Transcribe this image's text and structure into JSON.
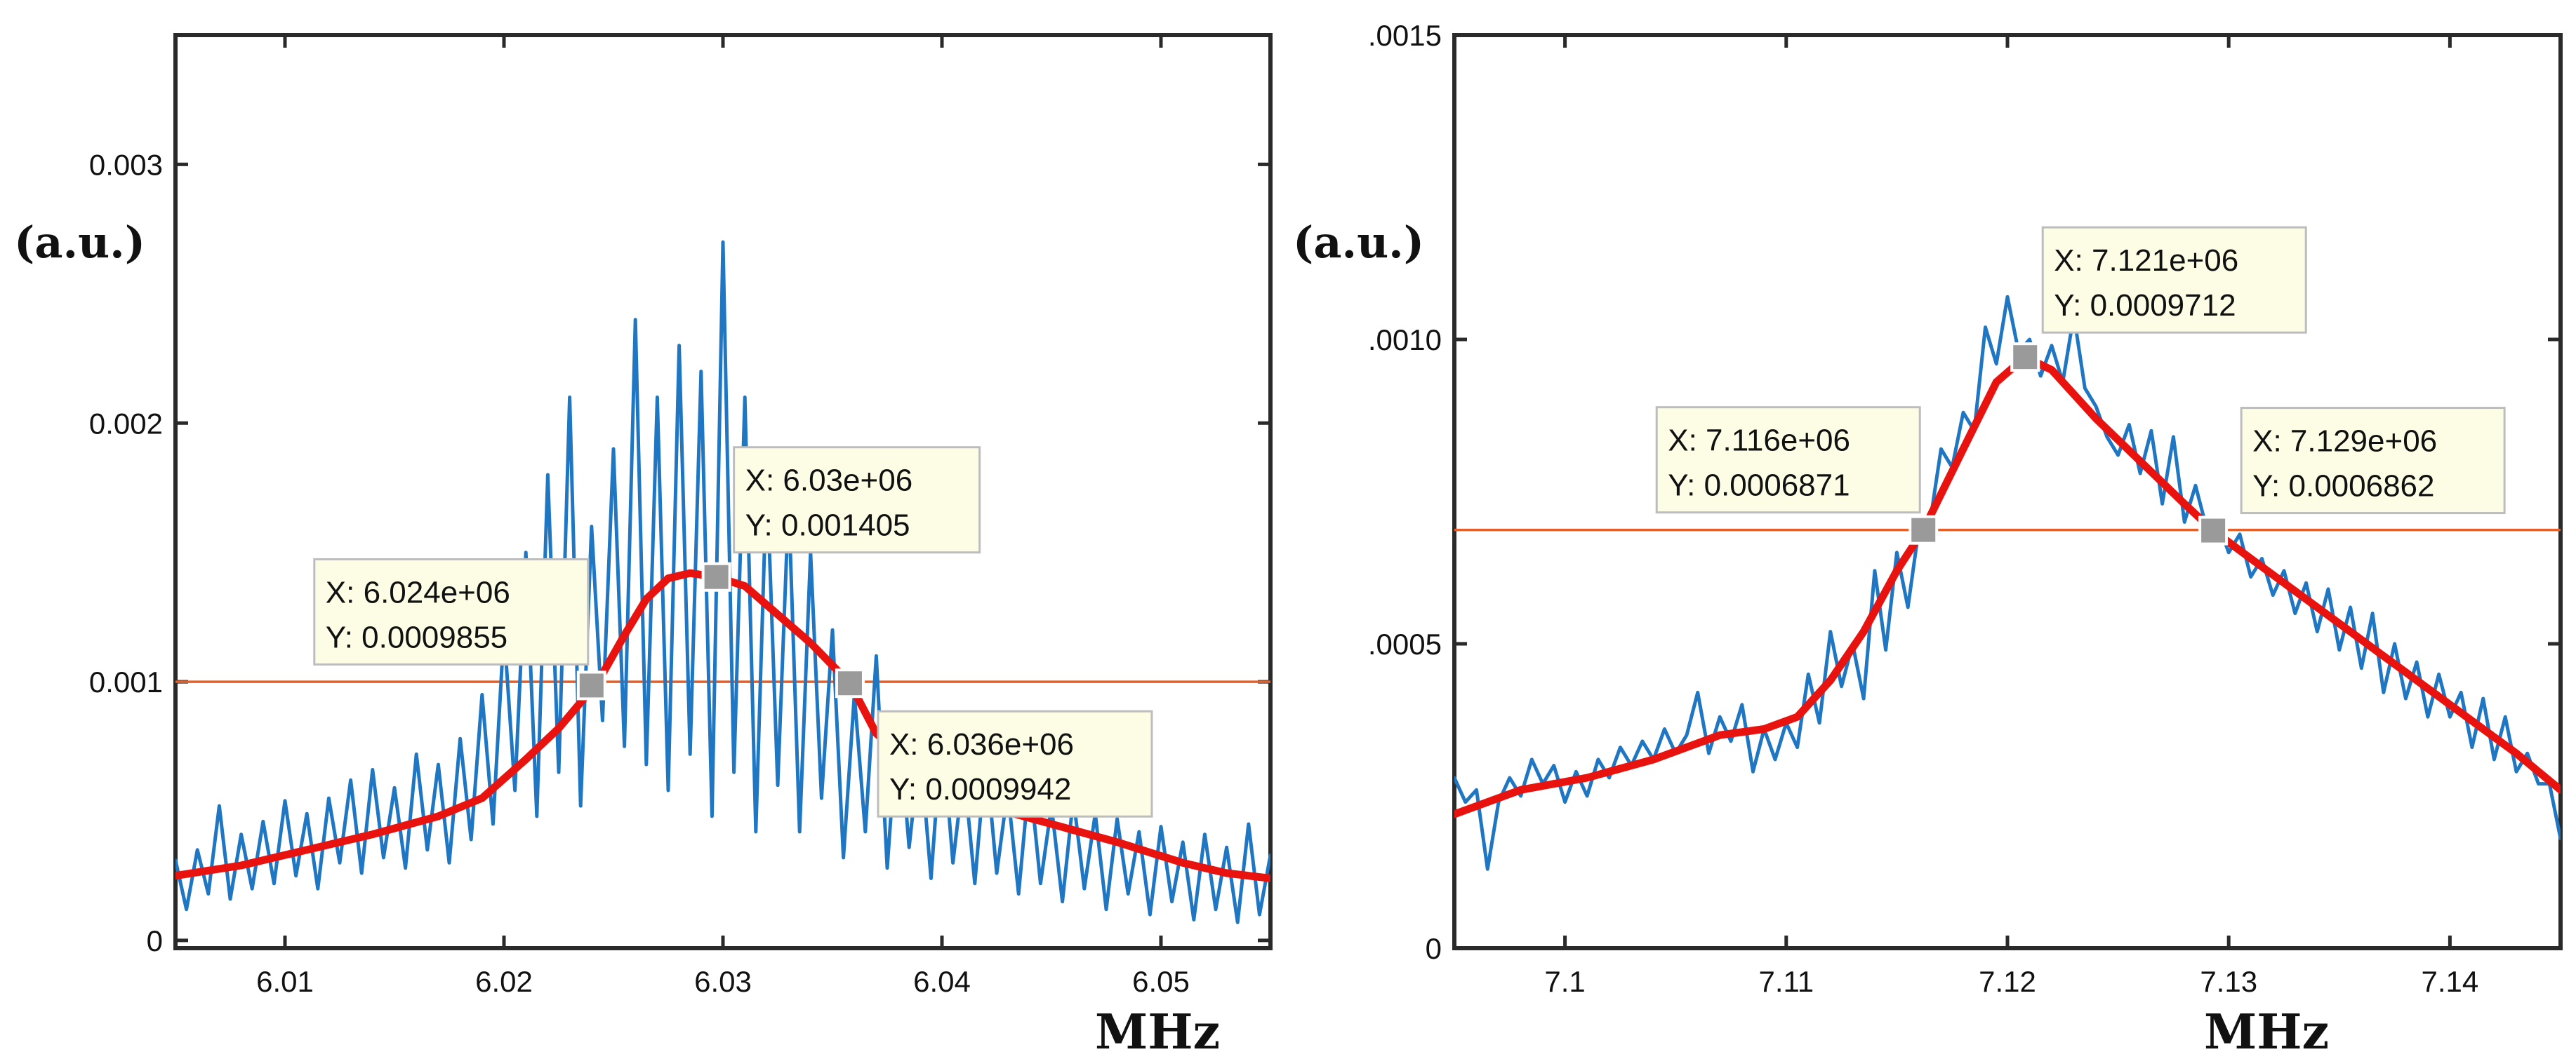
{
  "colors": {
    "noisy": "#1f77c4",
    "fit": "#e8130e",
    "hline": "#e4602a",
    "marker": "#9a9a9a",
    "tip_bg": "#fdfde6",
    "tip_border": "#bdbdbd",
    "axis": "#2a2a2a"
  },
  "chart_data": [
    {
      "type": "line",
      "title": "",
      "xlabel": "MHz",
      "ylabel": "(a.u.)",
      "xlim": [
        6.005,
        6.055
      ],
      "ylim": [
        -3e-05,
        0.0035
      ],
      "xticks": [
        {
          "v": 6.01,
          "label": "6.01"
        },
        {
          "v": 6.02,
          "label": "6.02"
        },
        {
          "v": 6.03,
          "label": "6.03"
        },
        {
          "v": 6.04,
          "label": "6.04"
        },
        {
          "v": 6.05,
          "label": "6.05"
        }
      ],
      "yticks": [
        {
          "v": 0,
          "label": "0"
        },
        {
          "v": 0.001,
          "label": "0.001"
        },
        {
          "v": 0.002,
          "label": "0.002"
        },
        {
          "v": 0.003,
          "label": "0.003"
        }
      ],
      "hline": 0.001,
      "series": [
        {
          "name": "measured",
          "x": [
            6.005,
            6.0055,
            6.006,
            6.0065,
            6.007,
            6.0075,
            6.008,
            6.0085,
            6.009,
            6.0095,
            6.01,
            6.0105,
            6.011,
            6.0115,
            6.012,
            6.0125,
            6.013,
            6.0135,
            6.014,
            6.0145,
            6.015,
            6.0155,
            6.016,
            6.0165,
            6.017,
            6.0175,
            6.018,
            6.0185,
            6.019,
            6.0195,
            6.02,
            6.0205,
            6.021,
            6.0215,
            6.022,
            6.0225,
            6.023,
            6.0235,
            6.024,
            6.0245,
            6.025,
            6.0255,
            6.026,
            6.0265,
            6.027,
            6.0275,
            6.028,
            6.0285,
            6.029,
            6.0295,
            6.03,
            6.0305,
            6.031,
            6.0315,
            6.032,
            6.0325,
            6.033,
            6.0335,
            6.034,
            6.0345,
            6.035,
            6.0355,
            6.036,
            6.0365,
            6.037,
            6.0375,
            6.038,
            6.0385,
            6.039,
            6.0395,
            6.04,
            6.0405,
            6.041,
            6.0415,
            6.042,
            6.0425,
            6.043,
            6.0435,
            6.044,
            6.0445,
            6.045,
            6.0455,
            6.046,
            6.0465,
            6.047,
            6.0475,
            6.048,
            6.0485,
            6.049,
            6.0495,
            6.05,
            6.0505,
            6.051,
            6.0515,
            6.052,
            6.0525,
            6.053,
            6.0535,
            6.054,
            6.0545,
            6.055
          ],
          "y": [
            0.00031,
            0.00012,
            0.00035,
            0.00018,
            0.00052,
            0.00016,
            0.00041,
            0.0002,
            0.00046,
            0.00022,
            0.00054,
            0.00025,
            0.00049,
            0.0002,
            0.00055,
            0.0003,
            0.00062,
            0.00026,
            0.00066,
            0.00032,
            0.00059,
            0.00028,
            0.00072,
            0.00035,
            0.00068,
            0.0003,
            0.00078,
            0.00039,
            0.00095,
            0.00045,
            0.0012,
            0.00058,
            0.0015,
            0.00048,
            0.0018,
            0.00065,
            0.0021,
            0.00052,
            0.0016,
            0.00085,
            0.0019,
            0.00075,
            0.0024,
            0.00068,
            0.0021,
            0.00058,
            0.0023,
            0.00072,
            0.0022,
            0.00048,
            0.0027,
            0.00065,
            0.0021,
            0.00042,
            0.0018,
            0.0006,
            0.0017,
            0.00042,
            0.0015,
            0.00055,
            0.0012,
            0.00032,
            0.00095,
            0.00042,
            0.0011,
            0.00028,
            0.00088,
            0.00036,
            0.00075,
            0.00024,
            0.00082,
            0.0003,
            0.00066,
            0.00022,
            0.00072,
            0.00026,
            0.00058,
            0.00018,
            0.00064,
            0.00022,
            0.00052,
            0.00015,
            0.00055,
            0.0002,
            0.00049,
            0.00012,
            0.00047,
            0.00018,
            0.00042,
            0.0001,
            0.00044,
            0.00015,
            0.00038,
            8e-05,
            0.00041,
            0.00012,
            0.00036,
            7e-05,
            0.00045,
            0.0001,
            0.00033
          ]
        },
        {
          "name": "fit",
          "x": [
            6.005,
            6.008,
            6.011,
            6.014,
            6.017,
            6.019,
            6.021,
            6.0225,
            6.0235,
            6.0245,
            6.0255,
            6.0265,
            6.0275,
            6.0285,
            6.0297,
            6.031,
            6.0325,
            6.034,
            6.0358,
            6.037,
            6.039,
            6.042,
            6.045,
            6.048,
            6.051,
            6.053,
            6.055
          ],
          "y": [
            0.00025,
            0.00029,
            0.00035,
            0.00041,
            0.00048,
            0.00055,
            0.0007,
            0.00082,
            0.00092,
            0.00103,
            0.00118,
            0.00132,
            0.0014,
            0.00142,
            0.001405,
            0.00137,
            0.00126,
            0.00115,
            0.000994,
            0.0008,
            0.00065,
            0.00052,
            0.00045,
            0.00038,
            0.0003,
            0.00026,
            0.00024
          ]
        }
      ],
      "datatips": [
        {
          "x": 6.024,
          "y": 0.0009855,
          "label_x": "X: 6.024e+06",
          "label_y": "Y: 0.0009855"
        },
        {
          "x": 6.0297,
          "y": 0.001405,
          "label_x": "X: 6.03e+06",
          "label_y": "Y: 0.001405"
        },
        {
          "x": 6.0358,
          "y": 0.0009942,
          "label_x": "X: 6.036e+06",
          "label_y": "Y: 0.0009942"
        }
      ]
    },
    {
      "type": "line",
      "title": "",
      "xlabel": "MHz",
      "ylabel": "(a.u.)",
      "xlim": [
        7.095,
        7.145
      ],
      "ylim": [
        0,
        0.0015
      ],
      "xticks": [
        {
          "v": 7.1,
          "label": "7.1"
        },
        {
          "v": 7.11,
          "label": "7.11"
        },
        {
          "v": 7.12,
          "label": "7.12"
        },
        {
          "v": 7.13,
          "label": "7.13"
        },
        {
          "v": 7.14,
          "label": "7.14"
        }
      ],
      "yticks": [
        {
          "v": 0,
          "label": "0"
        },
        {
          "v": 0.0005,
          "label": ".0005"
        },
        {
          "v": 0.001,
          "label": ".0010"
        },
        {
          "v": 0.0015,
          "label": ".0015"
        }
      ],
      "hline": 0.000687,
      "series": [
        {
          "name": "measured",
          "x": [
            7.095,
            7.0955,
            7.096,
            7.0965,
            7.097,
            7.0975,
            7.098,
            7.0985,
            7.099,
            7.0995,
            7.1,
            7.1005,
            7.101,
            7.1015,
            7.102,
            7.1025,
            7.103,
            7.1035,
            7.104,
            7.1045,
            7.105,
            7.1055,
            7.106,
            7.1065,
            7.107,
            7.1075,
            7.108,
            7.1085,
            7.109,
            7.1095,
            7.11,
            7.1105,
            7.111,
            7.1115,
            7.112,
            7.1125,
            7.113,
            7.1135,
            7.114,
            7.1145,
            7.115,
            7.1155,
            7.116,
            7.1165,
            7.117,
            7.1175,
            7.118,
            7.1185,
            7.119,
            7.1195,
            7.12,
            7.1205,
            7.121,
            7.1215,
            7.122,
            7.1225,
            7.123,
            7.1235,
            7.124,
            7.1245,
            7.125,
            7.1255,
            7.126,
            7.1265,
            7.127,
            7.1275,
            7.128,
            7.1285,
            7.129,
            7.1295,
            7.13,
            7.1305,
            7.131,
            7.1315,
            7.132,
            7.1325,
            7.133,
            7.1335,
            7.134,
            7.1345,
            7.135,
            7.1355,
            7.136,
            7.1365,
            7.137,
            7.1375,
            7.138,
            7.1385,
            7.139,
            7.1395,
            7.14,
            7.1405,
            7.141,
            7.1415,
            7.142,
            7.1425,
            7.143,
            7.1435,
            7.144,
            7.1445,
            7.145
          ],
          "y": [
            0.00028,
            0.00024,
            0.00026,
            0.00013,
            0.00024,
            0.00028,
            0.00025,
            0.00031,
            0.00027,
            0.0003,
            0.00024,
            0.00029,
            0.00025,
            0.00031,
            0.00028,
            0.00033,
            0.0003,
            0.00034,
            0.00031,
            0.00036,
            0.00032,
            0.00035,
            0.00042,
            0.00032,
            0.00038,
            0.00034,
            0.0004,
            0.00029,
            0.00036,
            0.00031,
            0.00037,
            0.00033,
            0.00045,
            0.00037,
            0.00052,
            0.00043,
            0.0005,
            0.00041,
            0.00062,
            0.00049,
            0.00065,
            0.00056,
            0.00069,
            0.0007,
            0.00082,
            0.00079,
            0.00088,
            0.00085,
            0.00102,
            0.00096,
            0.00107,
            0.00098,
            0.001,
            0.00094,
            0.00099,
            0.00093,
            0.00104,
            0.00092,
            0.00089,
            0.00084,
            0.00081,
            0.00086,
            0.00078,
            0.00085,
            0.00073,
            0.00084,
            0.0007,
            0.00076,
            0.00069,
            0.0007,
            0.00065,
            0.00068,
            0.00061,
            0.00064,
            0.00058,
            0.00062,
            0.00055,
            0.0006,
            0.00052,
            0.00059,
            0.00049,
            0.00056,
            0.00046,
            0.00055,
            0.00042,
            0.0005,
            0.00041,
            0.00047,
            0.00038,
            0.00045,
            0.00038,
            0.00042,
            0.00033,
            0.00041,
            0.00031,
            0.00038,
            0.00029,
            0.00032,
            0.00027,
            0.00027,
            0.00018
          ]
        },
        {
          "name": "fit",
          "x": [
            7.095,
            7.098,
            7.101,
            7.104,
            7.107,
            7.109,
            7.1105,
            7.112,
            7.1135,
            7.115,
            7.1162,
            7.118,
            7.1195,
            7.1208,
            7.122,
            7.124,
            7.126,
            7.128,
            7.1293,
            7.131,
            7.134,
            7.137,
            7.14,
            7.143,
            7.145
          ],
          "y": [
            0.00022,
            0.00026,
            0.00028,
            0.00031,
            0.00035,
            0.00036,
            0.00038,
            0.00044,
            0.00052,
            0.00062,
            0.000687,
            0.00082,
            0.00093,
            0.000971,
            0.00095,
            0.00087,
            0.0008,
            0.00073,
            0.000686,
            0.00064,
            0.00056,
            0.00048,
            0.0004,
            0.00032,
            0.00026
          ]
        }
      ],
      "datatips": [
        {
          "x": 7.1162,
          "y": 0.000687,
          "label_x": "X: 7.116e+06",
          "label_y": "Y: 0.0006871"
        },
        {
          "x": 7.1208,
          "y": 0.000971,
          "label_x": "X: 7.121e+06",
          "label_y": "Y: 0.0009712"
        },
        {
          "x": 7.1293,
          "y": 0.000686,
          "label_x": "X: 7.129e+06",
          "label_y": "Y: 0.0006862"
        }
      ]
    }
  ]
}
